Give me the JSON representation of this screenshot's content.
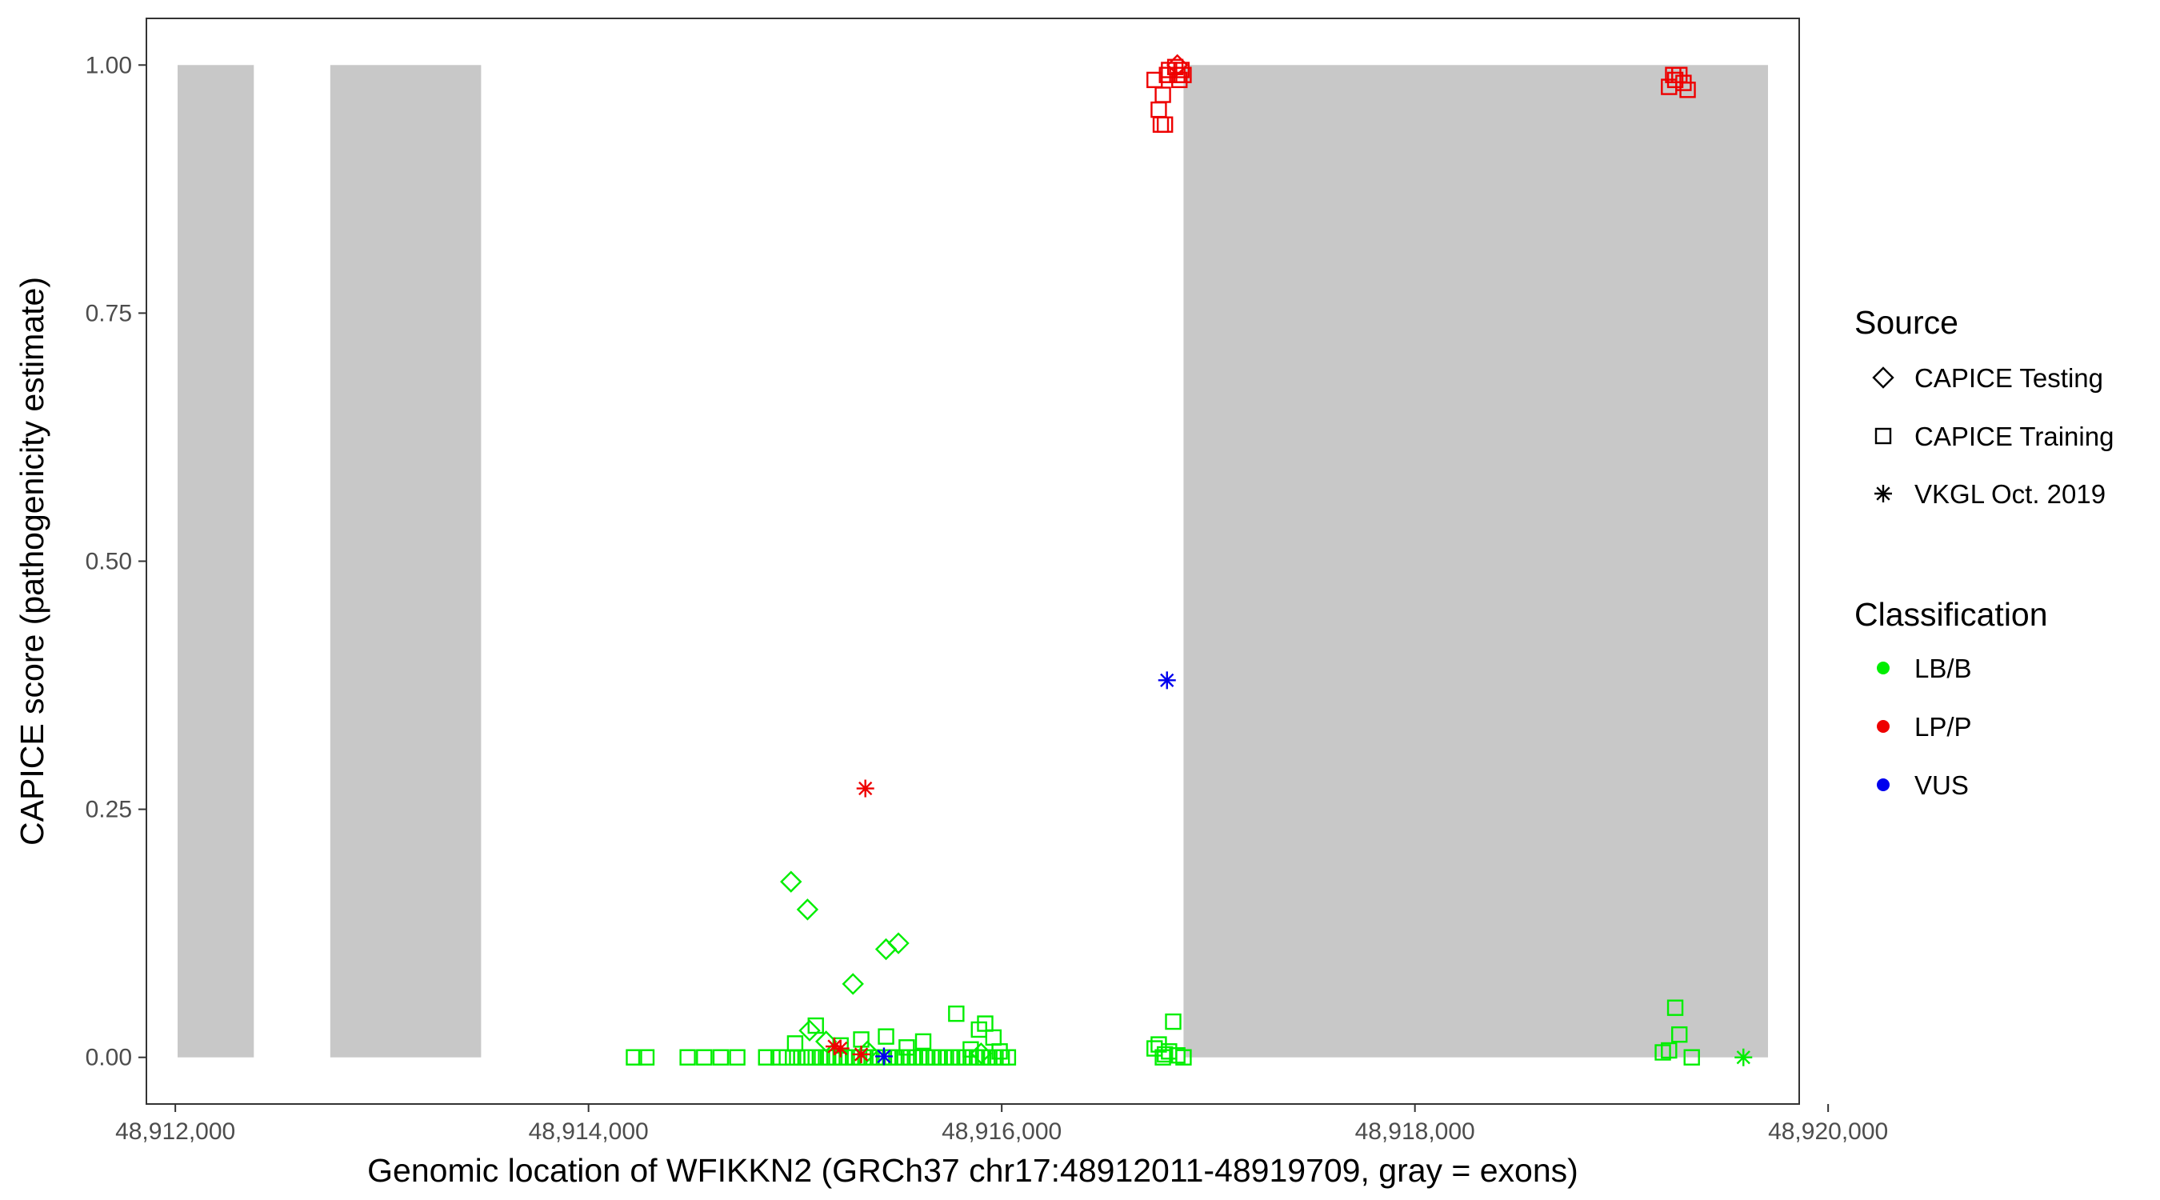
{
  "chart_data": {
    "type": "scatter",
    "xlabel": "Genomic location of WFIKKN2 (GRCh37 chr17:48912011-48919709, gray = exons)",
    "ylabel": "CAPICE score (pathogenicity estimate)",
    "xlim": [
      48911860,
      48919860
    ],
    "ylim": [
      -0.047,
      1.047
    ],
    "x_ticks": [
      48912000,
      48914000,
      48916000,
      48918000,
      48920000
    ],
    "x_tick_labels": [
      "48,912,000",
      "48,914,000",
      "48,916,000",
      "48,918,000",
      "48,920,000"
    ],
    "y_ticks": [
      0,
      0.25,
      0.5,
      0.75,
      1.0
    ],
    "y_tick_labels": [
      "0.00",
      "0.25",
      "0.50",
      "0.75",
      "1.00"
    ],
    "grid": false,
    "legend_position": "right",
    "exons": [
      {
        "start": 48912011,
        "end": 48912380
      },
      {
        "start": 48912750,
        "end": 48913480
      },
      {
        "start": 48916880,
        "end": 48919709
      }
    ],
    "colors": {
      "LB/B": "#00ee00",
      "LP/P": "#ee0000",
      "VUS": "#0000ee",
      "exon": "#c8c8c8"
    },
    "legend": {
      "source": {
        "title": "Source",
        "entries": [
          {
            "label": "CAPICE Testing",
            "shape": "diamond"
          },
          {
            "label": "CAPICE Training",
            "shape": "square"
          },
          {
            "label": "VKGL Oct. 2019",
            "shape": "asterisk"
          }
        ]
      },
      "classification": {
        "title": "Classification",
        "entries": [
          {
            "label": "LB/B",
            "color": "#00ee00"
          },
          {
            "label": "LP/P",
            "color": "#ee0000"
          },
          {
            "label": "VUS",
            "color": "#0000ee"
          }
        ]
      }
    },
    "series": [
      {
        "source": "CAPICE Training",
        "classification": "LP/P",
        "x": [
          48916740,
          48916760,
          48916770,
          48916790,
          48916810,
          48916840,
          48916850,
          48916860,
          48916870,
          48916880,
          48916780,
          48916800,
          48919230,
          48919260,
          48919280,
          48919300,
          48919320,
          48919250
        ],
        "y": [
          0.985,
          0.955,
          0.94,
          0.94,
          0.995,
          0.998,
          0.99,
          0.985,
          0.995,
          0.99,
          0.97,
          0.99,
          0.978,
          0.985,
          0.99,
          0.982,
          0.975,
          0.99
        ]
      },
      {
        "source": "CAPICE Testing",
        "classification": "LP/P",
        "x": [
          48916850
        ],
        "y": [
          1.0
        ]
      },
      {
        "source": "CAPICE Testing",
        "classification": "LB/B",
        "x": [
          48914980,
          48915060,
          48915280,
          48915440,
          48915500,
          48915070,
          48915150,
          48915350,
          48915900
        ],
        "y": [
          0.177,
          0.149,
          0.074,
          0.109,
          0.115,
          0.027,
          0.016,
          0.006,
          0.004
        ]
      },
      {
        "source": "CAPICE Training",
        "classification": "LB/B",
        "x": [
          48914220,
          48914280,
          48914480,
          48914560,
          48914640,
          48914720,
          48914860,
          48914920,
          48914960,
          48914990,
          48915010,
          48915030,
          48915050,
          48915080,
          48915100,
          48915130,
          48915160,
          48915190,
          48915220,
          48915250,
          48915280,
          48915310,
          48915340,
          48915370,
          48915400,
          48915430,
          48915460,
          48915490,
          48915520,
          48915550,
          48915580,
          48915610,
          48915640,
          48915670,
          48915700,
          48915730,
          48915760,
          48915790,
          48915820,
          48915850,
          48915880,
          48915910,
          48915940,
          48915970,
          48916000,
          48916030,
          48915000,
          48915100,
          48915220,
          48915320,
          48915440,
          48915540,
          48915620,
          48915780,
          48915850,
          48915890,
          48915920,
          48915960,
          48915990,
          48916740,
          48916760,
          48916790,
          48916810,
          48916830,
          48916850,
          48916880,
          48916780,
          48919200,
          48919230,
          48919260,
          48919280,
          48919340
        ],
        "y": [
          0,
          0,
          0,
          0,
          0,
          0,
          0,
          0,
          0,
          0,
          0,
          0,
          0,
          0,
          0,
          0,
          0,
          0,
          0,
          0,
          0,
          0,
          0,
          0,
          0,
          0,
          0,
          0,
          0,
          0,
          0,
          0,
          0,
          0,
          0,
          0,
          0,
          0,
          0,
          0,
          0,
          0,
          0,
          0,
          0,
          0,
          0.014,
          0.032,
          0.012,
          0.018,
          0.021,
          0.01,
          0.016,
          0.044,
          0.008,
          0.028,
          0.034,
          0.02,
          0.006,
          0.009,
          0.013,
          0.003,
          0.006,
          0.036,
          0.002,
          0,
          0,
          0.005,
          0.007,
          0.05,
          0.023,
          0
        ]
      },
      {
        "source": "VKGL Oct. 2019",
        "classification": "LP/P",
        "x": [
          48915340,
          48915190,
          48915220,
          48915320
        ],
        "y": [
          0.271,
          0.011,
          0.009,
          0.003
        ]
      },
      {
        "source": "VKGL Oct. 2019",
        "classification": "VUS",
        "x": [
          48916800,
          48915430
        ],
        "y": [
          0.38,
          0.001
        ]
      },
      {
        "source": "VKGL Oct. 2019",
        "classification": "LB/B",
        "x": [
          48919590
        ],
        "y": [
          0.0
        ]
      }
    ]
  }
}
